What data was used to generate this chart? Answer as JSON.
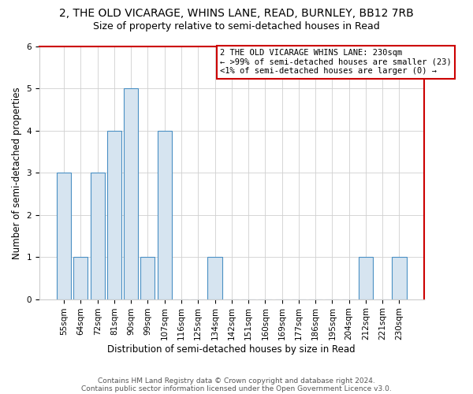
{
  "title1": "2, THE OLD VICARAGE, WHINS LANE, READ, BURNLEY, BB12 7RB",
  "title2": "Size of property relative to semi-detached houses in Read",
  "xlabel": "Distribution of semi-detached houses by size in Read",
  "ylabel": "Number of semi-detached properties",
  "categories": [
    "55sqm",
    "64sqm",
    "72sqm",
    "81sqm",
    "90sqm",
    "99sqm",
    "107sqm",
    "116sqm",
    "125sqm",
    "134sqm",
    "142sqm",
    "151sqm",
    "160sqm",
    "169sqm",
    "177sqm",
    "186sqm",
    "195sqm",
    "204sqm",
    "212sqm",
    "221sqm",
    "230sqm"
  ],
  "values": [
    3,
    1,
    3,
    4,
    5,
    1,
    4,
    0,
    0,
    1,
    0,
    0,
    0,
    0,
    0,
    0,
    0,
    0,
    1,
    0,
    1
  ],
  "bar_color": "#d6e4f0",
  "bar_edge_color": "#4a90c4",
  "right_spine_color": "#cc0000",
  "top_spine_color": "#cc0000",
  "ylim": [
    0,
    6
  ],
  "yticks": [
    0,
    1,
    2,
    3,
    4,
    5,
    6
  ],
  "legend_title": "2 THE OLD VICARAGE WHINS LANE: 230sqm",
  "legend_line1": "← >99% of semi-detached houses are smaller (23)",
  "legend_line2": "<1% of semi-detached houses are larger (0) →",
  "footer1": "Contains HM Land Registry data © Crown copyright and database right 2024.",
  "footer2": "Contains public sector information licensed under the Open Government Licence v3.0.",
  "background_color": "#ffffff",
  "plot_bg_color": "#ffffff",
  "grid_color": "#d0d0d0",
  "title_fontsize": 10,
  "subtitle_fontsize": 9,
  "axis_label_fontsize": 8.5,
  "tick_fontsize": 7.5,
  "legend_fontsize": 7.5
}
